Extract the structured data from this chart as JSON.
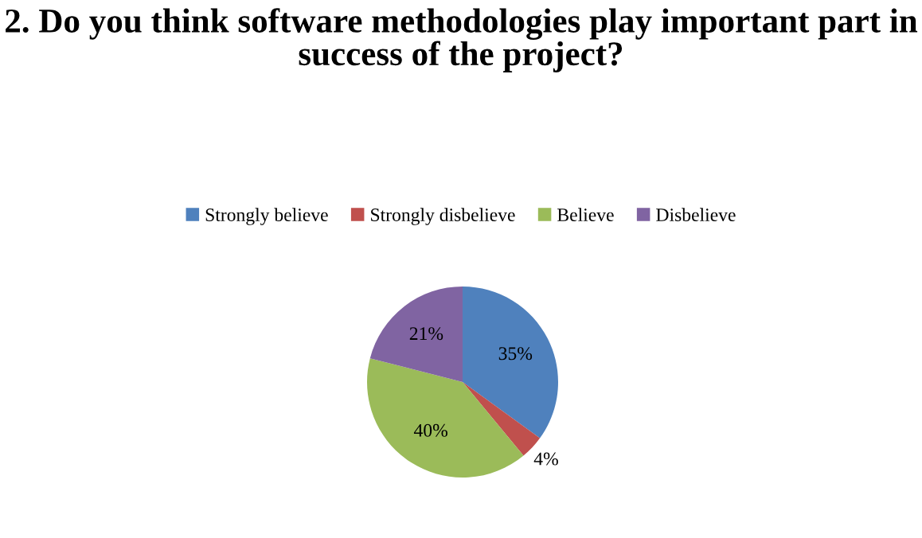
{
  "chart_data": {
    "type": "pie",
    "title": "2. Do you think software methodologies play important part in success of the project?",
    "categories": [
      "Strongly believe",
      "Strongly disbelieve",
      "Believe",
      "Disbelieve"
    ],
    "values": [
      35,
      4,
      40,
      21
    ],
    "colors": [
      "#4f81bd",
      "#c0504d",
      "#9bbb59",
      "#8064a2"
    ],
    "value_labels": [
      "35%",
      "4%",
      "40%",
      "21%"
    ],
    "legend": "top"
  }
}
